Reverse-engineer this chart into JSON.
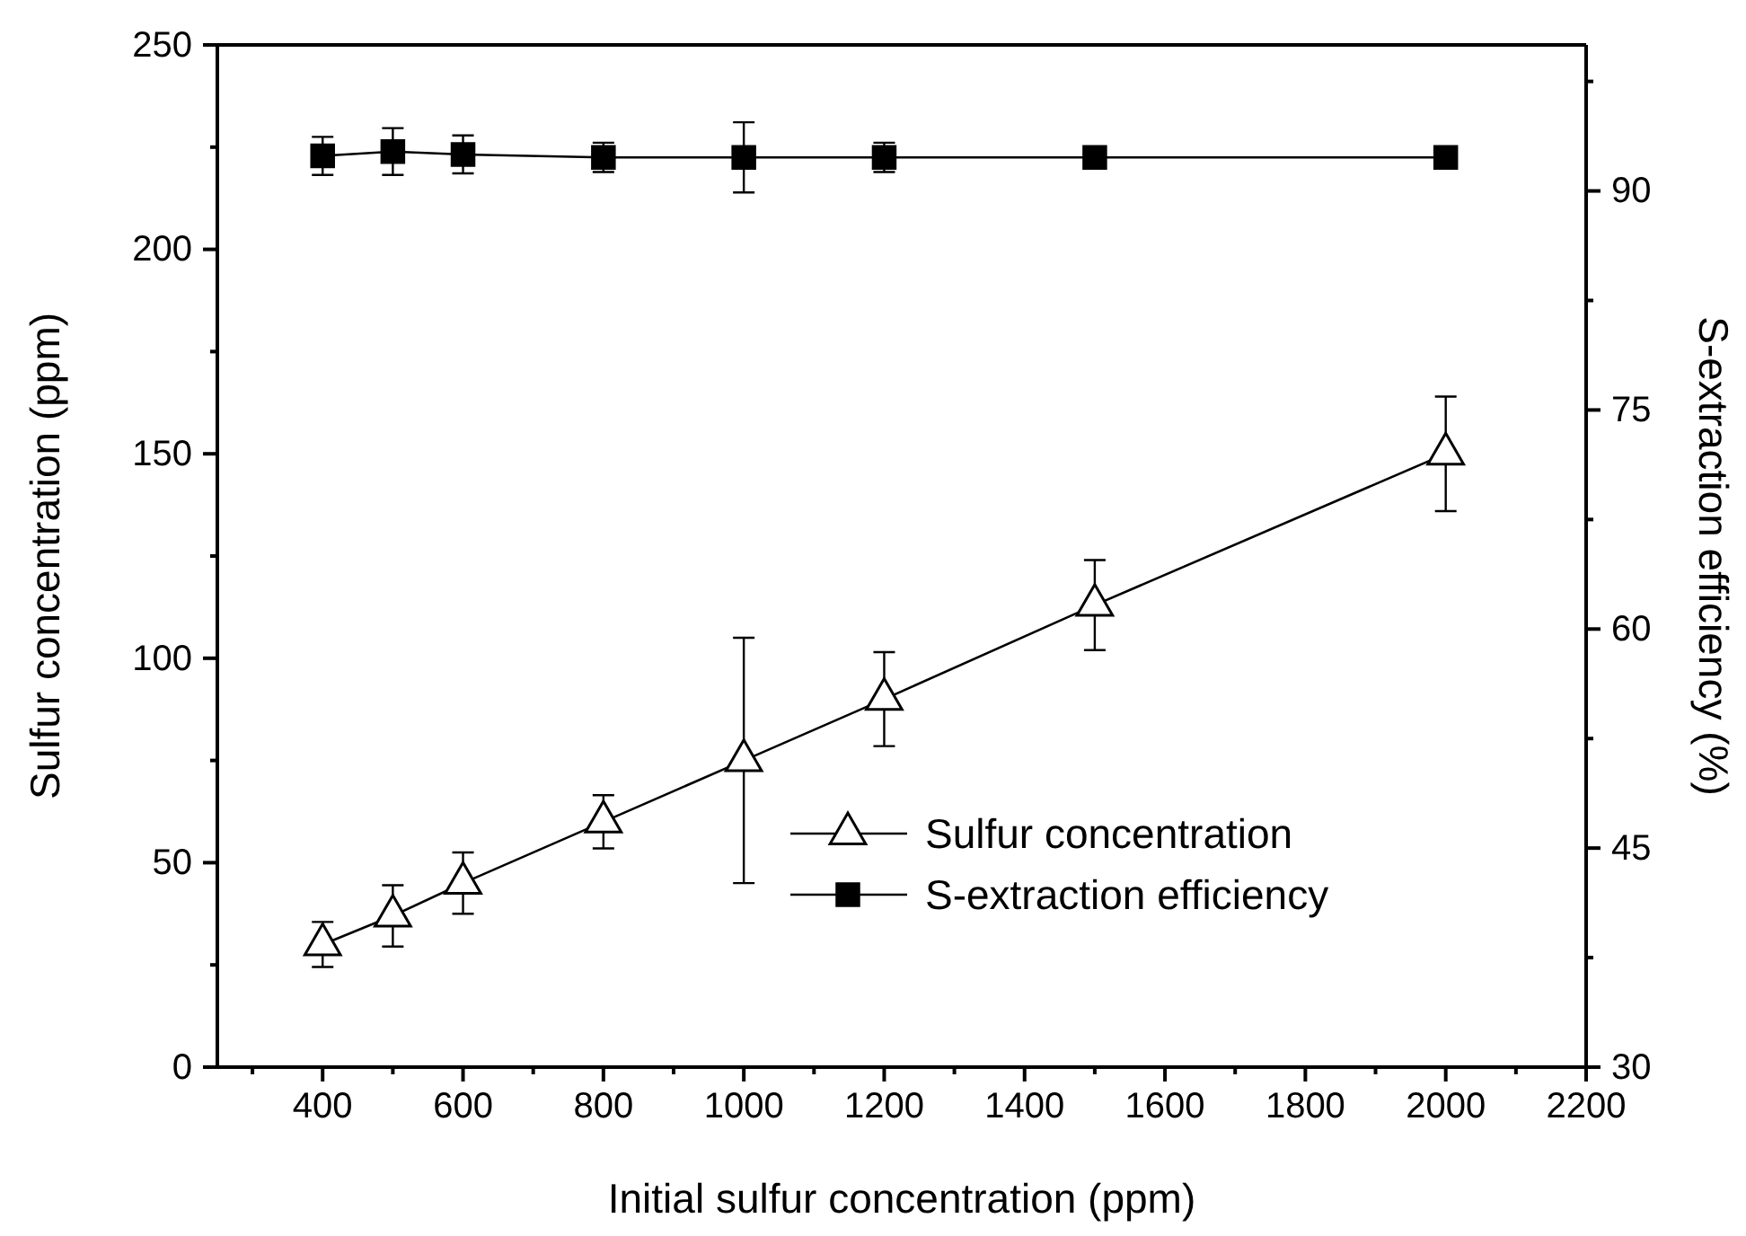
{
  "chart_data": {
    "type": "line",
    "xlabel": "Initial sulfur concentration (ppm)",
    "ylabel": "Sulfur concentration (ppm)",
    "y2label": "S-extraction efficiency (%)",
    "x": [
      400,
      500,
      600,
      800,
      1000,
      1200,
      1500,
      2000
    ],
    "xlim": [
      250,
      2200
    ],
    "xticks": [
      {
        "value": 300,
        "label": null
      },
      400,
      {
        "value": 500,
        "label": null
      },
      600,
      {
        "value": 700,
        "label": null
      },
      800,
      {
        "value": 900,
        "label": null
      },
      1000,
      {
        "value": 1100,
        "label": null
      },
      1200,
      {
        "value": 1300,
        "label": null
      },
      1400,
      {
        "value": 1500,
        "label": null
      },
      1600,
      {
        "value": 1700,
        "label": null
      },
      1800,
      {
        "value": 1900,
        "label": null
      },
      2000,
      {
        "value": 2100,
        "label": null
      },
      2200
    ],
    "ylim": [
      0,
      250
    ],
    "yticks": [
      0,
      {
        "value": 25,
        "label": null
      },
      50,
      {
        "value": 75,
        "label": null
      },
      100,
      {
        "value": 125,
        "label": null
      },
      150,
      {
        "value": 175,
        "label": null
      },
      200,
      {
        "value": 225,
        "label": null
      },
      250
    ],
    "y2lim": [
      30,
      100
    ],
    "y2ticks": [
      30,
      {
        "value": 37.5,
        "label": null
      },
      45,
      {
        "value": 52.5,
        "label": null
      },
      60,
      {
        "value": 67.5,
        "label": null
      },
      75,
      {
        "value": 82.5,
        "label": null
      },
      90,
      {
        "value": 97.5,
        "label": null
      }
    ],
    "legend": "bottom right",
    "grid": false,
    "line_style": "solid",
    "series": [
      {
        "name": "Sulfur concentration",
        "color": "#000000",
        "marker": "triangle",
        "values": [
          30,
          37,
          45,
          60,
          75,
          90,
          113,
          150
        ],
        "errors": [
          5.5,
          7.5,
          7.5,
          6.5,
          30,
          11.5,
          11,
          14
        ]
      },
      {
        "name": "S-extraction efficiency",
        "color": "#000000",
        "marker": "square",
        "axis": "y2",
        "values": [
          92.4,
          92.7,
          92.5,
          92.3,
          92.3,
          92.3,
          92.3,
          92.3
        ],
        "errors": [
          1.3,
          1.6,
          1.3,
          1.0,
          2.4,
          1.0,
          null,
          null
        ]
      }
    ]
  }
}
